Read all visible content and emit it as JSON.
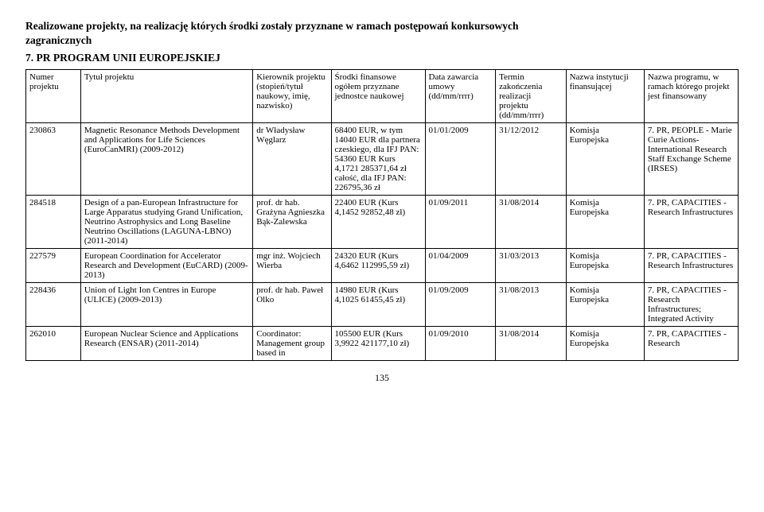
{
  "heading": {
    "line1": "Realizowane projekty, na realizację których środki zostały przyznane w ramach postępowań konkursowych",
    "line2": "zagranicznych",
    "subtitle": "7. PR PROGRAM UNII EUROPEJSKIEJ"
  },
  "columns": [
    "Numer projektu",
    "Tytuł projektu",
    "Kierownik projektu (stopień/tytuł naukowy, imię, nazwisko)",
    "Środki finansowe ogółem przyznane jednostce naukowej",
    "Data zawarcia umowy (dd/mm/rrrr)",
    "Termin zakończenia realizacji projektu (dd/mm/rrrr)",
    "Nazwa instytucji finansującej",
    "Nazwa programu, w ramach którego projekt jest finansowany"
  ],
  "rows": [
    {
      "id": "230863",
      "title": "Magnetic Resonance Methods Development and Applications for Life Sciences (EuroCanMRI) (2009-2012)",
      "leader": "dr Władysław Węglarz",
      "funds": "68400 EUR, w tym 14040 EUR dla partnera czeskiego, dla IFJ PAN: 54360 EUR\nKurs 4,1721 285371,64 zł całość, dla IFJ PAN: 226795,36 zł",
      "date_signed": "01/01/2009",
      "date_end": "31/12/2012",
      "funder": "Komisja Europejska",
      "program": "7. PR, PEOPLE - Marie Curie Actions- International Research Staff Exchange Scheme (IRSES)"
    },
    {
      "id": "284518",
      "title": "Design of a pan-European Infrastructure for Large Apparatus studying Grand Unification, Neutrino Astrophysics and Long Baseline Neutrino Oscillations (LAGUNA-LBNO) (2011-2014)",
      "leader": "prof. dr hab. Grażyna Agnieszka Bąk-Zalewska",
      "funds": "22400 EUR (Kurs 4,1452 92852,48 zł)",
      "date_signed": "01/09/2011",
      "date_end": "31/08/2014",
      "funder": "Komisja Europejska",
      "program": "7. PR, CAPACITIES - Research Infrastructures"
    },
    {
      "id": "227579",
      "title": "European Coordination for Accelerator Research and Development (EuCARD) (2009-2013)",
      "leader": "mgr inż. Wojciech Wierba",
      "funds": "24320 EUR (Kurs 4,6462 112995,59 zł)",
      "date_signed": "01/04/2009",
      "date_end": "31/03/2013",
      "funder": "Komisja Europejska",
      "program": "7. PR, CAPACITIES - Research Infrastructures"
    },
    {
      "id": "228436",
      "title": "Union of Light Ion Centres in Europe (ULICE) (2009-2013)",
      "leader": "prof. dr hab. Paweł Olko",
      "funds": "14980 EUR (Kurs 4,1025 61455,45 zł)",
      "date_signed": "01/09/2009",
      "date_end": "31/08/2013",
      "funder": "Komisja Europejska",
      "program": "7. PR, CAPACITIES - Research Infrastructures; Integrated Activity"
    },
    {
      "id": "262010",
      "title": "European Nuclear Science and Applications Research (ENSAR) (2011-2014)",
      "leader": "Coordinator: Management group based in",
      "funds": "105500 EUR (Kurs 3,9922 421177,10 zł)",
      "date_signed": "01/09/2010",
      "date_end": "31/08/2014",
      "funder": "Komisja Europejska",
      "program": "7. PR, CAPACITIES - Research"
    }
  ],
  "page_number": "135"
}
